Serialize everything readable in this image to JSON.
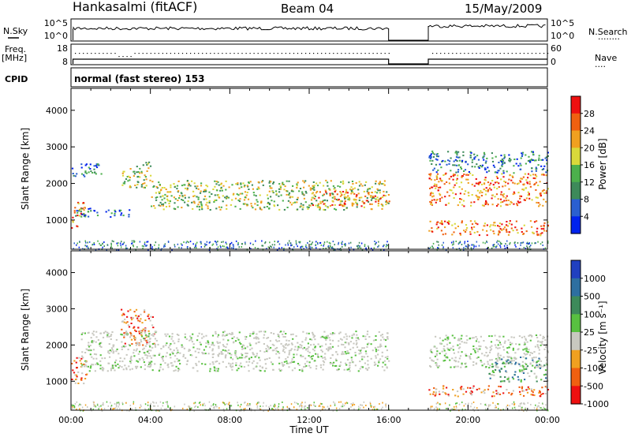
{
  "header": {
    "station": "Hankasalmi (fitACF)",
    "beam": "Beam 04",
    "date": "15/May/2009"
  },
  "left_labels": {
    "nsky": "N.Sky",
    "freq": "Freq.",
    "mhz": "[MHz]",
    "cpid": "CPID"
  },
  "right_labels": {
    "nsearch": "N.Search",
    "nsearch_style": "........",
    "nave": "Nave",
    "nave_style": "...."
  },
  "status_panels": {
    "noise_ticks_left": [
      "10^5",
      "10^0"
    ],
    "noise_ticks_right": [
      "10^5",
      "10^0"
    ],
    "freq_ticks_left": [
      "18",
      "8"
    ],
    "nave_ticks_right": [
      "60",
      "0"
    ],
    "cpid_text": "normal (fast stereo) 153"
  },
  "chart_data": [
    {
      "type": "heatmap",
      "name": "power",
      "xlabel": "",
      "ylabel": "Slant Range [km]",
      "x_ticks": [],
      "y_ticks": [
        "1000",
        "2000",
        "3000",
        "4000"
      ],
      "xlim": [
        0,
        24
      ],
      "ylim": [
        200,
        4600
      ],
      "data_gap_hours": [
        16,
        18
      ],
      "colorbar": {
        "label": "Power [dB]",
        "ticks": [
          "4",
          "8",
          "12",
          "16",
          "20",
          "24",
          "28"
        ],
        "colors": [
          "#0022ee",
          "#2a5fd0",
          "#3d8a5a",
          "#4cb04c",
          "#d9d93a",
          "#f0a020",
          "#f06010",
          "#ee1010"
        ]
      },
      "bands": [
        {
          "t0": 0.0,
          "t1": 0.7,
          "r0": 800,
          "r1": 1500,
          "level": "high"
        },
        {
          "t0": 0.2,
          "t1": 3.0,
          "r0": 1100,
          "r1": 1350,
          "level": "low"
        },
        {
          "t0": 0.0,
          "t1": 1.5,
          "r0": 2200,
          "r1": 2600,
          "level": "low"
        },
        {
          "t0": 2.5,
          "t1": 4.0,
          "r0": 1900,
          "r1": 2600,
          "level": "mid"
        },
        {
          "t0": 4.0,
          "t1": 16.0,
          "r0": 1300,
          "r1": 2100,
          "level": "mid"
        },
        {
          "t0": 12.0,
          "t1": 16.0,
          "r0": 1400,
          "r1": 1800,
          "level": "high"
        },
        {
          "t0": 18.0,
          "t1": 24.0,
          "r0": 1400,
          "r1": 2300,
          "level": "high"
        },
        {
          "t0": 18.0,
          "t1": 24.0,
          "r0": 600,
          "r1": 1000,
          "level": "high"
        },
        {
          "t0": 18.0,
          "t1": 24.0,
          "r0": 2300,
          "r1": 2900,
          "level": "low"
        }
      ]
    },
    {
      "type": "heatmap",
      "name": "velocity",
      "xlabel": "Time UT",
      "ylabel": "Slant Range [km]",
      "x_ticks": [
        "00:00",
        "04:00",
        "08:00",
        "12:00",
        "16:00",
        "20:00",
        "00:00"
      ],
      "y_ticks": [
        "1000",
        "2000",
        "3000",
        "4000"
      ],
      "xlim": [
        0,
        24
      ],
      "ylim": [
        200,
        4600
      ],
      "data_gap_hours": [
        16,
        18
      ],
      "colorbar": {
        "label": "Velocity [m s⁻¹]",
        "ticks": [
          "1000",
          "500",
          "100",
          "25",
          "-25",
          "-100",
          "-500",
          "-1000"
        ],
        "colors": [
          "#2040c0",
          "#2e6fa0",
          "#3d8a5a",
          "#58c040",
          "#c8c8c0",
          "#f0a020",
          "#f06010",
          "#ee1010"
        ]
      },
      "bands": [
        {
          "t0": 0.0,
          "t1": 0.8,
          "r0": 900,
          "r1": 1700,
          "level": "neg"
        },
        {
          "t0": 2.5,
          "t1": 4.2,
          "r0": 2000,
          "r1": 3000,
          "level": "neg"
        },
        {
          "t0": 0.5,
          "t1": 16.0,
          "r0": 1300,
          "r1": 2400,
          "level": "gray"
        },
        {
          "t0": 18.0,
          "t1": 24.0,
          "r0": 1400,
          "r1": 2300,
          "level": "gray"
        },
        {
          "t0": 21.0,
          "t1": 24.0,
          "r0": 1000,
          "r1": 1700,
          "level": "pos"
        },
        {
          "t0": 18.0,
          "t1": 24.0,
          "r0": 600,
          "r1": 900,
          "level": "neg"
        }
      ]
    }
  ]
}
